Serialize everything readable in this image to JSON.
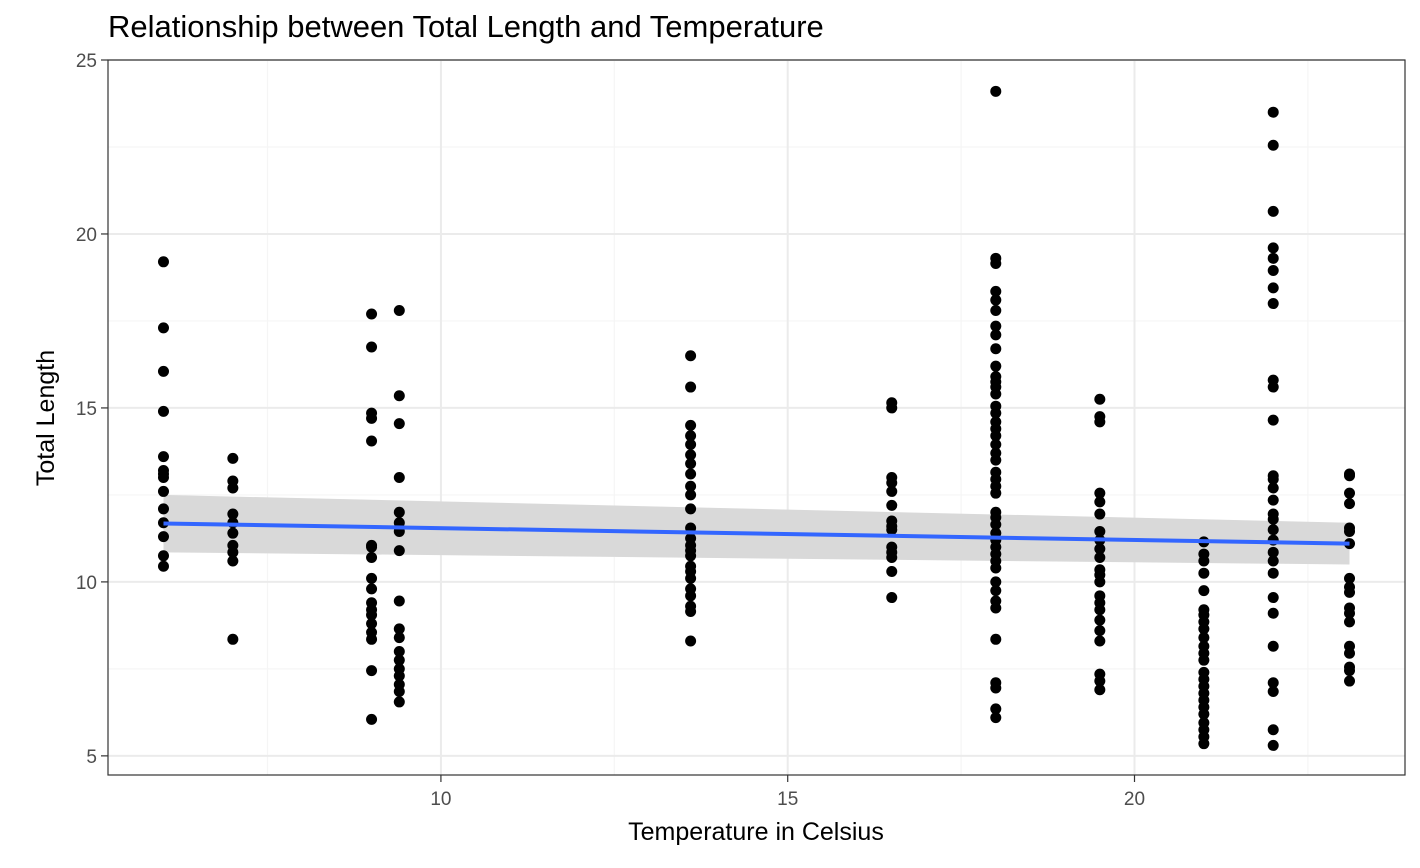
{
  "chart_data": {
    "type": "scatter",
    "title": "Relationship between Total Length and Temperature",
    "xlabel": "Temperature in Celsius",
    "ylabel": "Total Length",
    "xlim": [
      5.2,
      23.9
    ],
    "ylim": [
      4.45,
      25.0
    ],
    "x_ticks": [
      10,
      15,
      20
    ],
    "y_ticks": [
      5,
      10,
      15,
      20,
      25
    ],
    "grid": true,
    "legend": "none",
    "colors": {
      "points": "#000000",
      "trend_line": "#3366ff",
      "confidence_band": "#d9d9d9",
      "grid_major": "#ebebeb",
      "grid_minor": "#f5f5f5",
      "panel_border": "#333333"
    },
    "trend": {
      "x": [
        6.0,
        23.1
      ],
      "y": [
        11.68,
        11.1
      ],
      "ci_lower": [
        10.85,
        10.5
      ],
      "ci_upper": [
        12.5,
        11.7
      ]
    },
    "groups": [
      {
        "x": 6.0,
        "y": [
          19.2,
          17.3,
          16.05,
          14.9,
          13.6,
          13.2,
          13.1,
          13.0,
          12.6,
          12.1,
          11.7,
          11.3,
          10.75,
          10.45
        ]
      },
      {
        "x": 7.0,
        "y": [
          13.55,
          12.9,
          12.7,
          11.95,
          11.7,
          11.4,
          11.05,
          10.85,
          10.6,
          8.35
        ]
      },
      {
        "x": 9.0,
        "y": [
          17.7,
          16.75,
          14.85,
          14.7,
          14.05,
          11.05,
          11.0,
          10.7,
          10.1,
          9.8,
          9.4,
          9.2,
          9.05,
          8.8,
          8.55,
          8.35,
          7.45,
          6.05
        ]
      },
      {
        "x": 9.4,
        "y": [
          17.8,
          15.35,
          14.55,
          13.0,
          12.0,
          11.7,
          11.55,
          11.45,
          10.9,
          9.45,
          8.65,
          8.4,
          8.0,
          7.75,
          7.5,
          7.3,
          7.05,
          6.85,
          6.55
        ]
      },
      {
        "x": 13.6,
        "y": [
          16.5,
          15.6,
          14.5,
          14.2,
          13.95,
          13.65,
          13.4,
          13.1,
          12.75,
          12.5,
          12.1,
          11.55,
          11.25,
          11.05,
          10.9,
          10.75,
          10.45,
          10.3,
          10.1,
          9.8,
          9.6,
          9.3,
          9.15,
          8.3
        ]
      },
      {
        "x": 16.5,
        "y": [
          15.15,
          15.0,
          13.0,
          12.85,
          12.6,
          12.2,
          11.75,
          11.6,
          11.5,
          11.0,
          10.85,
          10.7,
          10.3,
          9.55
        ]
      },
      {
        "x": 18.0,
        "y": [
          24.1,
          19.3,
          19.15,
          18.35,
          18.1,
          17.8,
          17.35,
          17.1,
          16.7,
          16.2,
          15.9,
          15.75,
          15.6,
          15.4,
          15.05,
          14.85,
          14.6,
          14.4,
          14.2,
          13.95,
          13.7,
          13.5,
          13.15,
          12.95,
          12.75,
          12.55,
          12.0,
          11.85,
          11.65,
          11.4,
          11.2,
          11.0,
          10.8,
          10.6,
          10.4,
          10.0,
          9.75,
          9.45,
          9.25,
          8.35,
          7.1,
          6.95,
          6.35,
          6.1
        ]
      },
      {
        "x": 19.5,
        "y": [
          15.25,
          14.75,
          14.6,
          12.55,
          12.3,
          11.95,
          11.45,
          11.2,
          10.95,
          10.7,
          10.35,
          10.2,
          10.0,
          9.6,
          9.4,
          9.2,
          8.9,
          8.6,
          8.3,
          7.35,
          7.15,
          6.9
        ]
      },
      {
        "x": 21.0,
        "y": [
          11.15,
          10.8,
          10.6,
          10.25,
          9.75,
          9.2,
          9.05,
          8.85,
          8.65,
          8.4,
          8.15,
          7.95,
          7.75,
          7.4,
          7.2,
          7.0,
          6.8,
          6.6,
          6.4,
          6.2,
          5.95,
          5.75,
          5.55,
          5.35
        ]
      },
      {
        "x": 22.0,
        "y": [
          23.5,
          22.55,
          20.65,
          19.6,
          19.3,
          18.95,
          18.45,
          18.0,
          15.8,
          15.6,
          14.65,
          13.05,
          12.95,
          12.7,
          12.35,
          11.95,
          11.8,
          11.5,
          11.2,
          10.85,
          10.6,
          10.25,
          9.55,
          9.1,
          8.15,
          7.1,
          6.85,
          5.75,
          5.3
        ]
      },
      {
        "x": 23.1,
        "y": [
          13.1,
          13.05,
          12.55,
          12.25,
          11.55,
          11.45,
          11.1,
          10.1,
          9.85,
          9.7,
          9.25,
          9.1,
          8.85,
          8.15,
          7.95,
          7.55,
          7.45,
          7.15
        ]
      }
    ]
  }
}
